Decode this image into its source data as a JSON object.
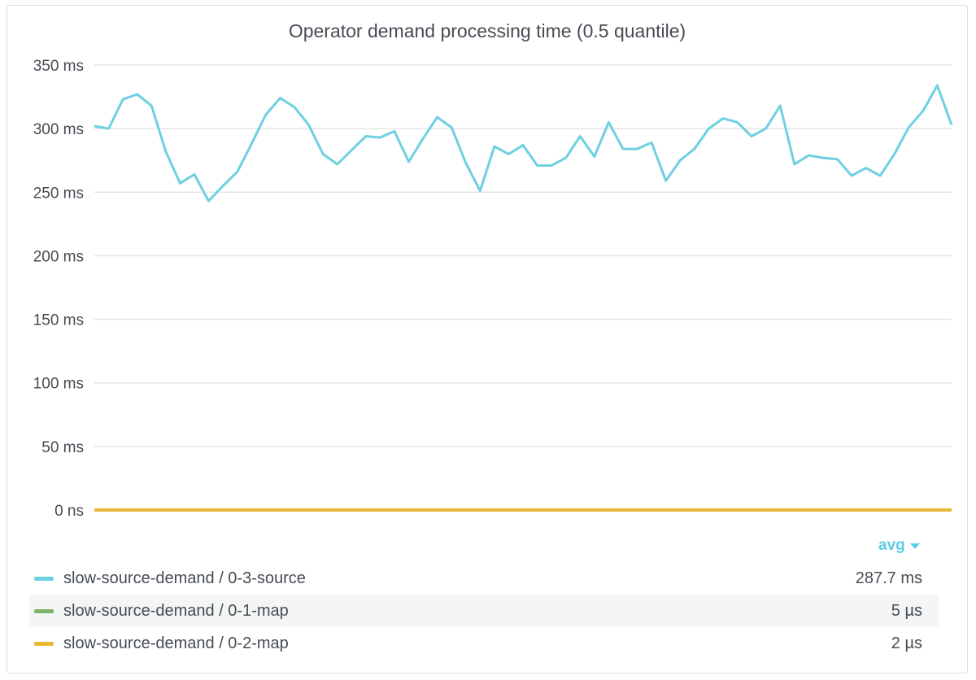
{
  "panel": {
    "title": "Operator demand processing time (0.5 quantile)"
  },
  "chart_data": {
    "type": "line",
    "title": "Operator demand processing time (0.5 quantile)",
    "y_unit": "ms",
    "ylim": [
      0,
      350
    ],
    "y_ticks": [
      {
        "value": 0,
        "label": "0 ns"
      },
      {
        "value": 50,
        "label": "50 ms"
      },
      {
        "value": 100,
        "label": "100 ms"
      },
      {
        "value": 150,
        "label": "150 ms"
      },
      {
        "value": 200,
        "label": "200 ms"
      },
      {
        "value": 250,
        "label": "250 ms"
      },
      {
        "value": 300,
        "label": "300 ms"
      },
      {
        "value": 350,
        "label": "350 ms"
      }
    ],
    "grid": true,
    "series": [
      {
        "name": "slow-source-demand / 0-3-source",
        "color": "#6ed0e0",
        "values": [
          302,
          300,
          323,
          327,
          318,
          282,
          257,
          264,
          243,
          255,
          266,
          288,
          311,
          324,
          317,
          303,
          280,
          272,
          283,
          294,
          293,
          298,
          274,
          292,
          309,
          301,
          273,
          251,
          286,
          280,
          287,
          271,
          271,
          277,
          294,
          278,
          305,
          284,
          284,
          289,
          259,
          275,
          284,
          300,
          308,
          305,
          294,
          300,
          318,
          272,
          279,
          277,
          276,
          263,
          269,
          263,
          280,
          301,
          314,
          334,
          303
        ]
      },
      {
        "name": "slow-source-demand / 0-1-map",
        "color": "#7eb26d",
        "values": [
          0,
          0,
          0,
          0,
          0,
          0,
          0,
          0,
          0,
          0,
          0,
          0,
          0,
          0,
          0,
          0,
          0,
          0,
          0,
          0,
          0,
          0,
          0,
          0,
          0,
          0,
          0,
          0,
          0,
          0,
          0,
          0,
          0,
          0,
          0,
          0,
          0,
          0,
          0,
          0,
          0,
          0,
          0,
          0,
          0,
          0,
          0,
          0,
          0,
          0,
          0,
          0,
          0,
          0,
          0,
          0,
          0,
          0,
          0,
          0,
          0
        ]
      },
      {
        "name": "slow-source-demand / 0-2-map",
        "color": "#eab839",
        "values": [
          0,
          0,
          0,
          0,
          0,
          0,
          0,
          0,
          0,
          0,
          0,
          0,
          0,
          0,
          0,
          0,
          0,
          0,
          0,
          0,
          0,
          0,
          0,
          0,
          0,
          0,
          0,
          0,
          0,
          0,
          0,
          0,
          0,
          0,
          0,
          0,
          0,
          0,
          0,
          0,
          0,
          0,
          0,
          0,
          0,
          0,
          0,
          0,
          0,
          0,
          0,
          0,
          0,
          0,
          0,
          0,
          0,
          0,
          0,
          0,
          0
        ]
      }
    ]
  },
  "legend": {
    "header": "avg",
    "rows": [
      {
        "name": "slow-source-demand / 0-3-source",
        "value": "287.7 ms",
        "color": "#6ed0e0"
      },
      {
        "name": "slow-source-demand / 0-1-map",
        "value": "5 µs",
        "color": "#7eb26d"
      },
      {
        "name": "slow-source-demand / 0-2-map",
        "value": "2 µs",
        "color": "#eab839"
      }
    ]
  }
}
